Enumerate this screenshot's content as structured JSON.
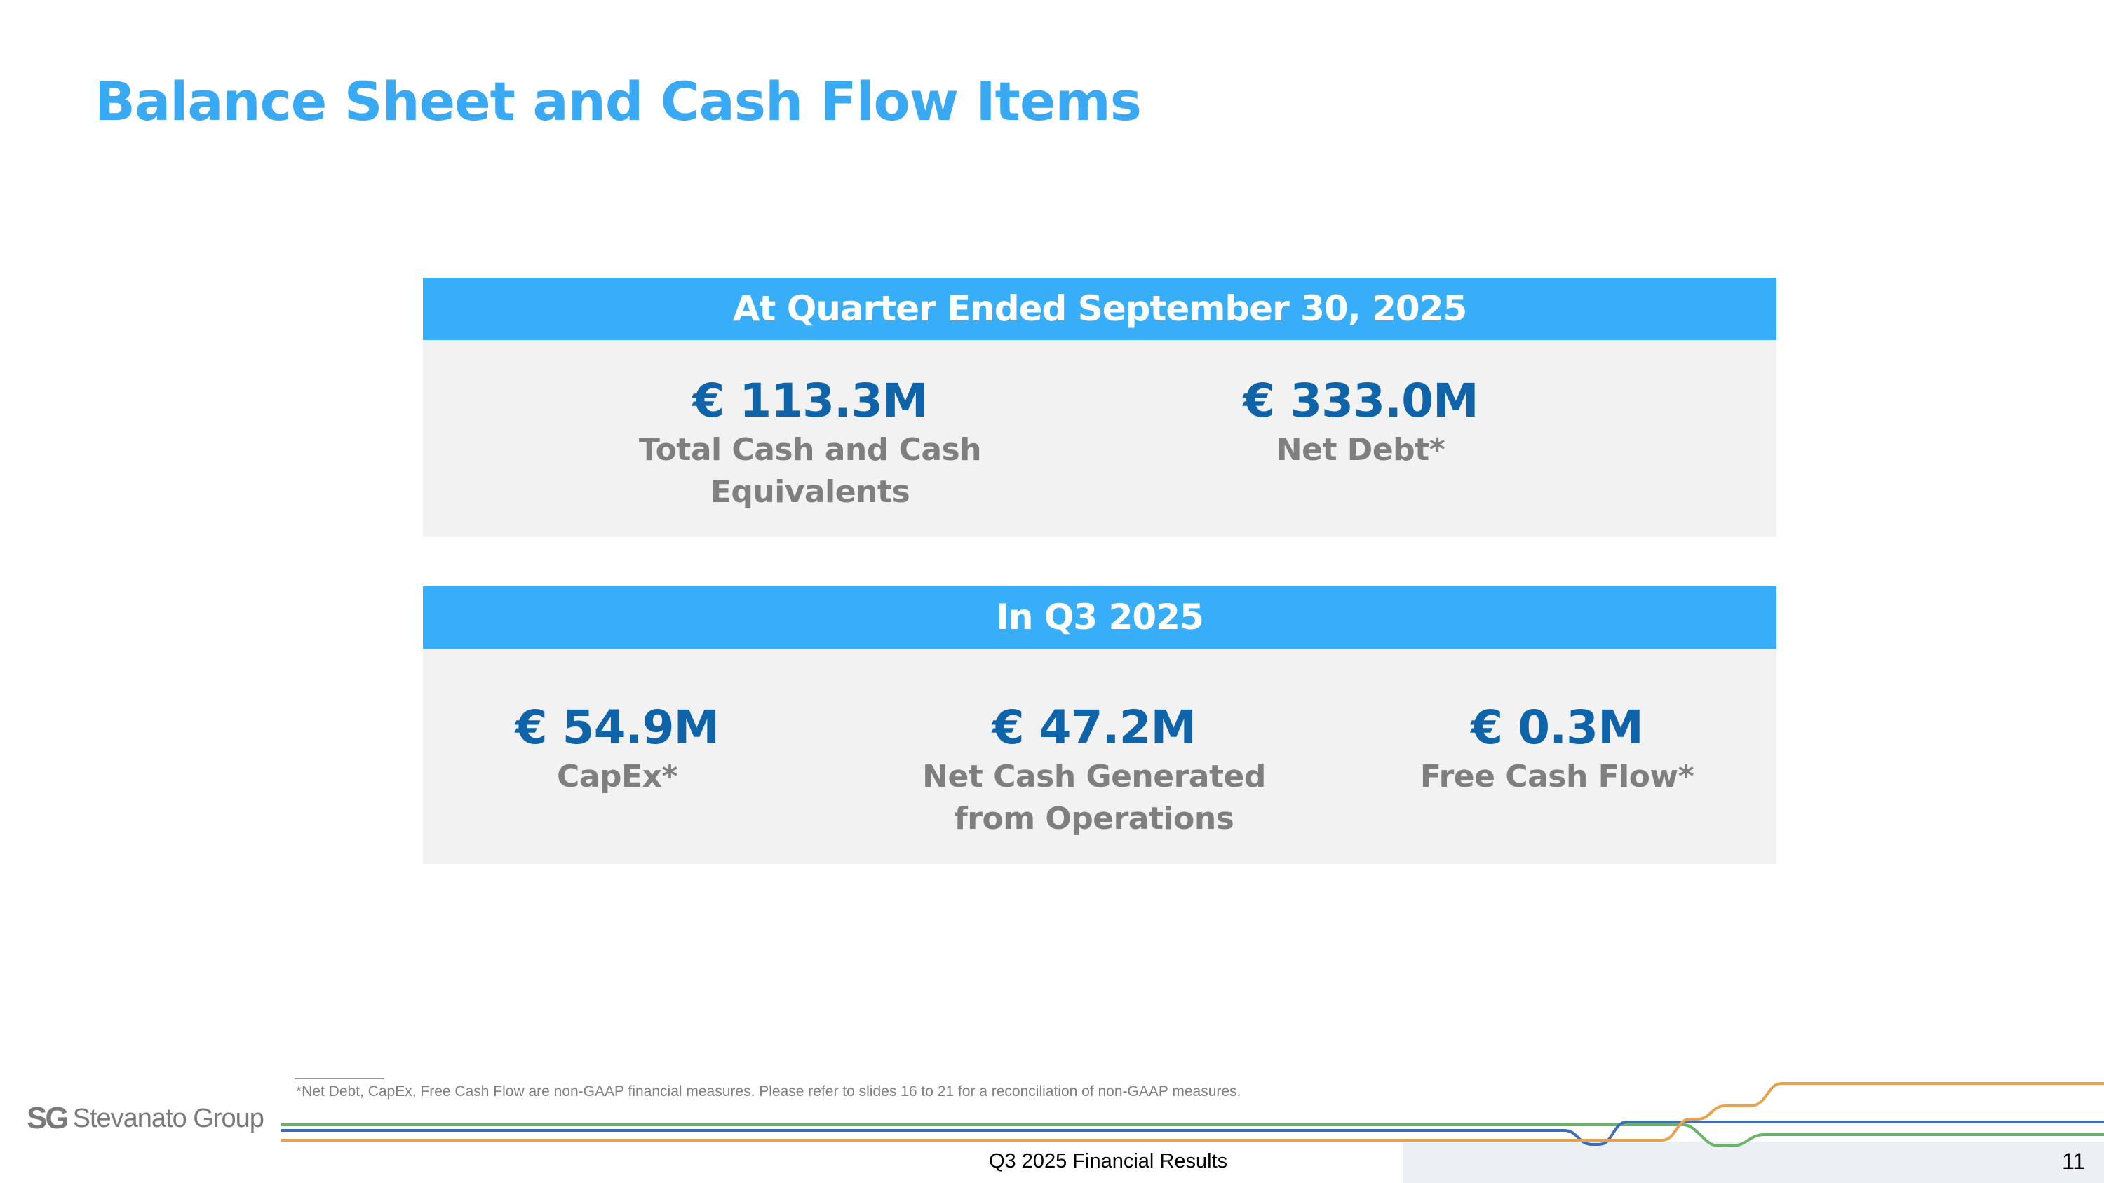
{
  "title": "Balance Sheet and Cash Flow Items",
  "panels": [
    {
      "header": "At Quarter Ended September 30, 2025",
      "metrics": [
        {
          "value": "€ 113.3M",
          "label_line1": "Total Cash and Cash",
          "label_line2": "Equivalents"
        },
        {
          "value": "€ 333.0M",
          "label_line1": "Net Debt*",
          "label_line2": ""
        }
      ]
    },
    {
      "header": "In Q3 2025",
      "metrics": [
        {
          "value": "€ 54.9M",
          "label_line1": "CapEx*",
          "label_line2": ""
        },
        {
          "value": "€ 47.2M",
          "label_line1": "Net Cash Generated",
          "label_line2": "from Operations"
        },
        {
          "value": "€ 0.3M",
          "label_line1": "Free Cash Flow*",
          "label_line2": ""
        }
      ]
    }
  ],
  "footnote": "*Net Debt, CapEx, Free Cash Flow are non-GAAP financial measures. Please refer to slides 16 to 21 for a reconciliation of non-GAAP measures.",
  "footer": {
    "logo_mark": "SG",
    "logo_text": "Stevanato Group",
    "title": "Q3 2025 Financial Results",
    "page_number": "11"
  },
  "colors": {
    "accent": "#38aef8",
    "value": "#0f63a8",
    "label": "#7f7f7f",
    "panel_bg": "#f2f2f2",
    "line_green": "#6ab36a",
    "line_blue": "#3d6db5",
    "line_orange": "#e8a24a"
  }
}
